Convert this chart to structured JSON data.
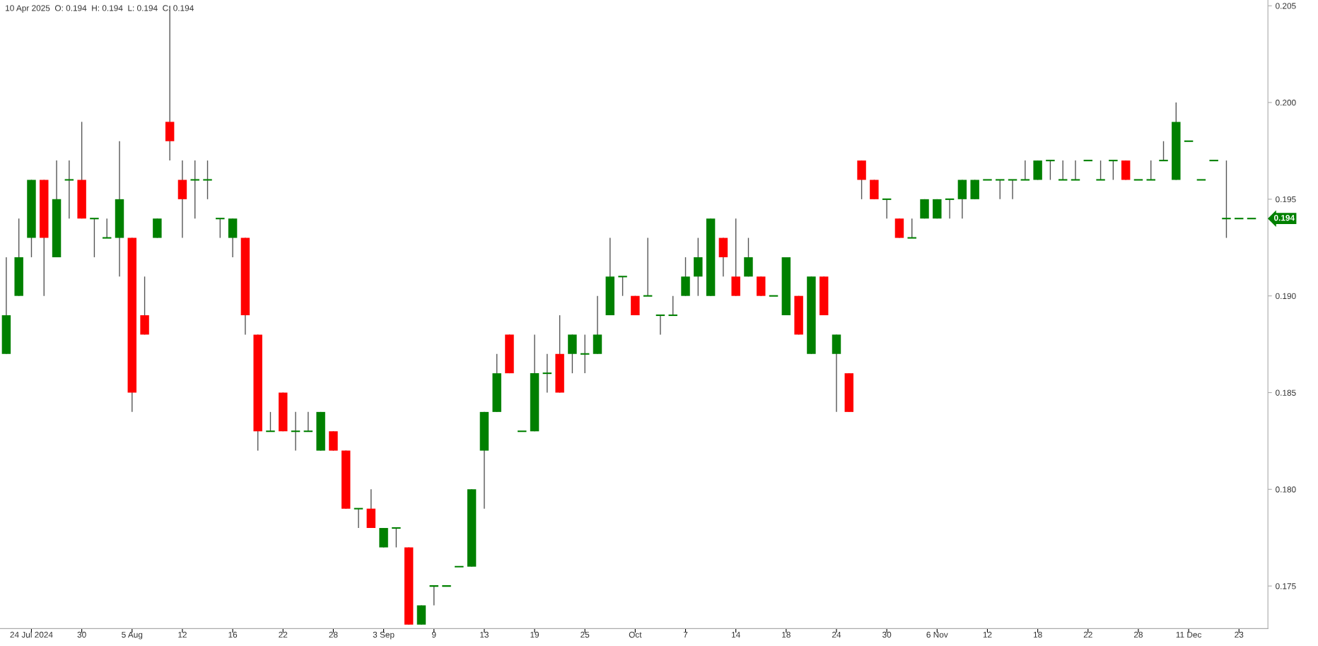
{
  "chart_data": {
    "type": "candlestick",
    "annotations": [
      "10 Apr 2025  O: 0.194  H: 0.194  L: 0.194  C: 0.194",
      "0.194"
    ],
    "categories": [
      null,
      null,
      "24 Jul 2024",
      null,
      null,
      null,
      "30",
      null,
      null,
      null,
      "5 Aug",
      null,
      null,
      null,
      "12",
      null,
      null,
      null,
      "16",
      null,
      null,
      null,
      "22",
      null,
      null,
      null,
      "28",
      null,
      null,
      null,
      "3 Sep",
      null,
      null,
      null,
      "9",
      null,
      null,
      null,
      "13",
      null,
      null,
      null,
      "19",
      null,
      null,
      null,
      "25",
      null,
      null,
      null,
      "Oct",
      null,
      null,
      null,
      "7",
      null,
      null,
      null,
      "14",
      null,
      null,
      null,
      "18",
      null,
      null,
      null,
      "24",
      null,
      null,
      null,
      "30",
      null,
      null,
      null,
      "6 Nov",
      null,
      null,
      null,
      "12",
      null,
      null,
      null,
      "18",
      null,
      null,
      null,
      "22",
      null,
      null,
      null,
      "28",
      null,
      null,
      null,
      "11 Dec",
      null,
      null,
      null,
      "23",
      null
    ],
    "ohlc": [
      [
        0.187,
        0.192,
        0.187,
        0.189
      ],
      [
        0.19,
        0.194,
        0.19,
        0.192
      ],
      [
        0.193,
        0.196,
        0.192,
        0.196
      ],
      [
        0.196,
        0.196,
        0.19,
        0.193
      ],
      [
        0.192,
        0.197,
        0.192,
        0.195
      ],
      [
        0.196,
        0.197,
        0.194,
        0.196
      ],
      [
        0.196,
        0.199,
        0.194,
        0.194
      ],
      [
        0.194,
        0.194,
        0.192,
        0.194
      ],
      [
        0.193,
        0.194,
        0.193,
        0.193
      ],
      [
        0.193,
        0.198,
        0.191,
        0.195
      ],
      [
        0.193,
        0.193,
        0.184,
        0.185
      ],
      [
        0.189,
        0.191,
        0.188,
        0.188
      ],
      [
        0.193,
        0.194,
        0.193,
        0.194
      ],
      [
        0.199,
        0.205,
        0.197,
        0.198
      ],
      [
        0.196,
        0.197,
        0.193,
        0.195
      ],
      [
        0.196,
        0.197,
        0.194,
        0.196
      ],
      [
        0.196,
        0.197,
        0.195,
        0.196
      ],
      [
        0.194,
        0.194,
        0.193,
        0.194
      ],
      [
        0.193,
        0.194,
        0.192,
        0.194
      ],
      [
        0.193,
        0.193,
        0.188,
        0.189
      ],
      [
        0.188,
        0.188,
        0.182,
        0.183
      ],
      [
        0.183,
        0.184,
        0.183,
        0.183
      ],
      [
        0.185,
        0.185,
        0.183,
        0.183
      ],
      [
        0.183,
        0.184,
        0.182,
        0.183
      ],
      [
        0.183,
        0.184,
        0.183,
        0.183
      ],
      [
        0.182,
        0.184,
        0.182,
        0.184
      ],
      [
        0.183,
        0.183,
        0.182,
        0.182
      ],
      [
        0.182,
        0.182,
        0.179,
        0.179
      ],
      [
        0.179,
        0.179,
        0.178,
        0.179
      ],
      [
        0.179,
        0.18,
        0.178,
        0.178
      ],
      [
        0.177,
        0.178,
        0.177,
        0.178
      ],
      [
        0.178,
        0.178,
        0.177,
        0.178
      ],
      [
        0.177,
        0.177,
        0.173,
        0.173
      ],
      [
        0.173,
        0.174,
        0.173,
        0.174
      ],
      [
        0.175,
        0.175,
        0.174,
        0.175
      ],
      [
        0.175,
        0.175,
        0.175,
        0.175
      ],
      [
        0.176,
        0.176,
        0.176,
        0.176
      ],
      [
        0.176,
        0.18,
        0.176,
        0.18
      ],
      [
        0.182,
        0.184,
        0.179,
        0.184
      ],
      [
        0.184,
        0.187,
        0.184,
        0.186
      ],
      [
        0.188,
        0.188,
        0.186,
        0.186
      ],
      [
        0.183,
        0.183,
        0.183,
        0.183
      ],
      [
        0.183,
        0.188,
        0.183,
        0.186
      ],
      [
        0.186,
        0.187,
        0.185,
        0.186
      ],
      [
        0.187,
        0.189,
        0.185,
        0.185
      ],
      [
        0.187,
        0.188,
        0.186,
        0.188
      ],
      [
        0.187,
        0.188,
        0.186,
        0.187
      ],
      [
        0.187,
        0.19,
        0.187,
        0.188
      ],
      [
        0.189,
        0.193,
        0.189,
        0.191
      ],
      [
        0.191,
        0.191,
        0.19,
        0.191
      ],
      [
        0.19,
        0.19,
        0.189,
        0.189
      ],
      [
        0.19,
        0.193,
        0.19,
        0.19
      ],
      [
        0.189,
        0.189,
        0.188,
        0.189
      ],
      [
        0.189,
        0.19,
        0.189,
        0.189
      ],
      [
        0.19,
        0.192,
        0.19,
        0.191
      ],
      [
        0.191,
        0.193,
        0.19,
        0.192
      ],
      [
        0.19,
        0.194,
        0.19,
        0.194
      ],
      [
        0.193,
        0.193,
        0.191,
        0.192
      ],
      [
        0.191,
        0.194,
        0.19,
        0.19
      ],
      [
        0.191,
        0.193,
        0.191,
        0.192
      ],
      [
        0.191,
        0.191,
        0.19,
        0.19
      ],
      [
        0.19,
        0.19,
        0.19,
        0.19
      ],
      [
        0.189,
        0.192,
        0.189,
        0.192
      ],
      [
        0.19,
        0.19,
        0.188,
        0.188
      ],
      [
        0.187,
        0.191,
        0.187,
        0.191
      ],
      [
        0.191,
        0.191,
        0.189,
        0.189
      ],
      [
        0.187,
        0.188,
        0.184,
        0.188
      ],
      [
        0.186,
        0.186,
        0.184,
        0.184
      ],
      [
        0.197,
        0.197,
        0.195,
        0.196
      ],
      [
        0.196,
        0.196,
        0.195,
        0.195
      ],
      [
        0.195,
        0.195,
        0.194,
        0.195
      ],
      [
        0.194,
        0.194,
        0.193,
        0.193
      ],
      [
        0.193,
        0.194,
        0.193,
        0.193
      ],
      [
        0.194,
        0.195,
        0.194,
        0.195
      ],
      [
        0.194,
        0.195,
        0.194,
        0.195
      ],
      [
        0.195,
        0.195,
        0.194,
        0.195
      ],
      [
        0.195,
        0.196,
        0.194,
        0.196
      ],
      [
        0.195,
        0.196,
        0.195,
        0.196
      ],
      [
        0.196,
        0.196,
        0.196,
        0.196
      ],
      [
        0.196,
        0.196,
        0.195,
        0.196
      ],
      [
        0.196,
        0.196,
        0.195,
        0.196
      ],
      [
        0.196,
        0.197,
        0.196,
        0.196
      ],
      [
        0.196,
        0.197,
        0.196,
        0.197
      ],
      [
        0.197,
        0.197,
        0.196,
        0.197
      ],
      [
        0.196,
        0.197,
        0.196,
        0.196
      ],
      [
        0.196,
        0.197,
        0.196,
        0.196
      ],
      [
        0.197,
        0.197,
        0.197,
        0.197
      ],
      [
        0.196,
        0.197,
        0.196,
        0.196
      ],
      [
        0.197,
        0.197,
        0.196,
        0.197
      ],
      [
        0.197,
        0.197,
        0.196,
        0.196
      ],
      [
        0.196,
        0.196,
        0.196,
        0.196
      ],
      [
        0.196,
        0.197,
        0.196,
        0.196
      ],
      [
        0.197,
        0.198,
        0.197,
        0.197
      ],
      [
        0.196,
        0.2,
        0.196,
        0.199
      ],
      [
        0.198,
        0.198,
        0.198,
        0.198
      ],
      [
        0.196,
        0.196,
        0.196,
        0.196
      ],
      [
        0.197,
        0.197,
        0.197,
        0.197
      ],
      [
        0.194,
        0.197,
        0.193,
        0.194
      ],
      [
        0.194,
        0.194,
        0.194,
        0.194
      ],
      [
        0.194,
        0.194,
        0.194,
        0.194
      ]
    ],
    "colors": [
      "#008000",
      "#008000",
      "#008000",
      "#ff0000",
      "#008000",
      "#008000",
      "#ff0000",
      "#008000",
      "#008000",
      "#008000",
      "#ff0000",
      "#ff0000",
      "#008000",
      "#ff0000",
      "#ff0000",
      "#008000",
      "#008000",
      "#008000",
      "#008000",
      "#ff0000",
      "#ff0000",
      "#008000",
      "#ff0000",
      "#008000",
      "#008000",
      "#008000",
      "#ff0000",
      "#ff0000",
      "#008000",
      "#ff0000",
      "#008000",
      "#008000",
      "#ff0000",
      "#008000",
      "#008000",
      "#008000",
      "#008000",
      "#008000",
      "#008000",
      "#008000",
      "#ff0000",
      "#008000",
      "#008000",
      "#008000",
      "#ff0000",
      "#008000",
      "#008000",
      "#008000",
      "#008000",
      "#008000",
      "#ff0000",
      "#008000",
      "#008000",
      "#008000",
      "#008000",
      "#008000",
      "#008000",
      "#ff0000",
      "#ff0000",
      "#008000",
      "#ff0000",
      "#008000",
      "#008000",
      "#ff0000",
      "#008000",
      "#ff0000",
      "#008000",
      "#ff0000",
      "#ff0000",
      "#ff0000",
      "#008000",
      "#ff0000",
      "#008000",
      "#008000",
      "#008000",
      "#008000",
      "#008000",
      "#008000",
      "#008000",
      "#008000",
      "#008000",
      "#008000",
      "#008000",
      "#008000",
      "#008000",
      "#008000",
      "#008000",
      "#008000",
      "#008000",
      "#ff0000",
      "#008000",
      "#008000",
      "#008000",
      "#008000",
      "#008000",
      "#008000",
      "#008000",
      "#008000",
      "#008000",
      "#008000"
    ],
    "ylim": [
      0.1728,
      0.2053
    ],
    "yticks": [
      {
        "value": 0.175,
        "label": "0.175"
      },
      {
        "value": 0.18,
        "label": "0.180"
      },
      {
        "value": 0.185,
        "label": "0.185"
      },
      {
        "value": 0.19,
        "label": "0.190"
      },
      {
        "value": 0.195,
        "label": "0.195"
      },
      {
        "value": 0.2,
        "label": "0.200"
      },
      {
        "value": 0.205,
        "label": "0.205"
      }
    ],
    "grid": false,
    "legend": false
  }
}
